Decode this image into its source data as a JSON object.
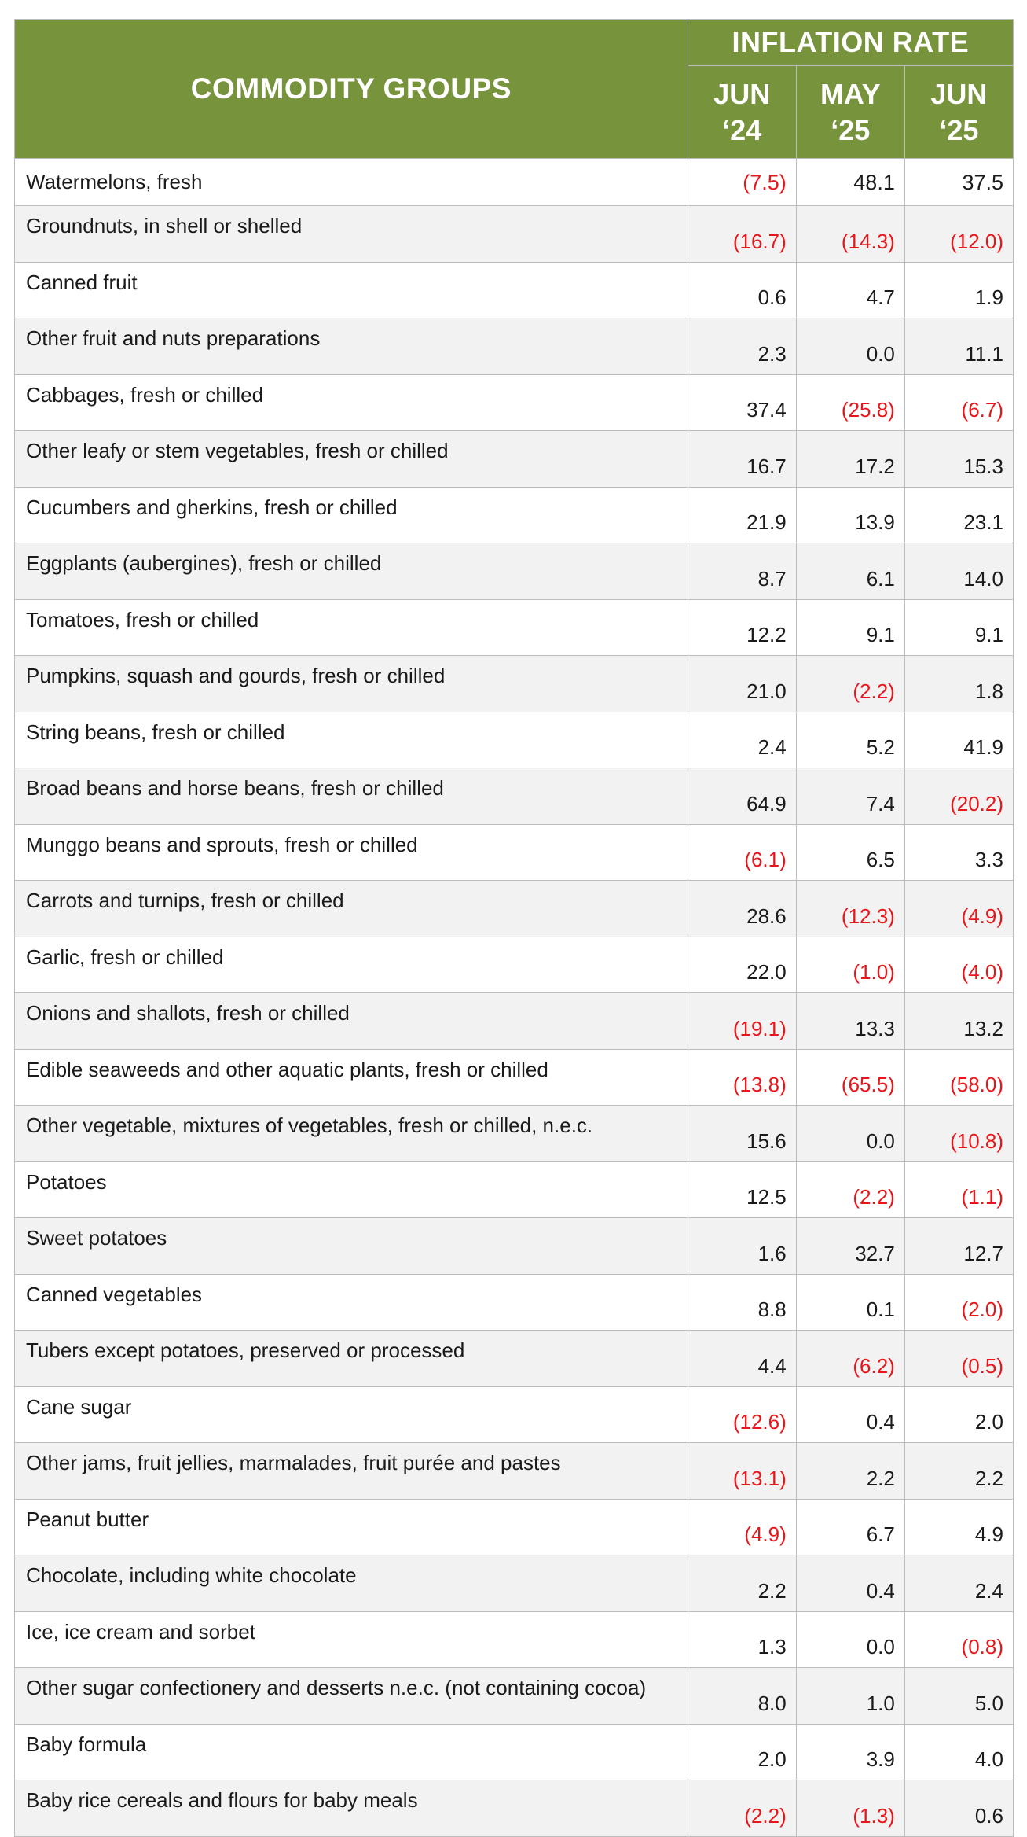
{
  "colors": {
    "header_bg": "#77933c",
    "header_text": "#ffffff",
    "negative": "#e8161b",
    "stripe": "#f2f2f2",
    "border": "#bcbcbc"
  },
  "top_row": {
    "name": "Watermelons, fresh",
    "jun24": "(7.5)",
    "may25": "48.1",
    "jun25": "37.5"
  },
  "header": {
    "groups_label": "COMMODITY GROUPS",
    "rate_label": "INFLATION RATE",
    "periods": [
      {
        "month": "JUN",
        "year": "‘24"
      },
      {
        "month": "MAY",
        "year": "‘25"
      },
      {
        "month": "JUN",
        "year": "‘25"
      }
    ]
  },
  "rows": [
    {
      "name": "Groundnuts, in shell or shelled",
      "jun24": "(16.7)",
      "may25": "(14.3)",
      "jun25": "(12.0)"
    },
    {
      "name": "Canned fruit",
      "jun24": "0.6",
      "may25": "4.7",
      "jun25": "1.9"
    },
    {
      "name": "Other fruit and nuts preparations",
      "jun24": "2.3",
      "may25": "0.0",
      "jun25": "11.1"
    },
    {
      "name": "Cabbages, fresh or chilled",
      "jun24": "37.4",
      "may25": "(25.8)",
      "jun25": "(6.7)"
    },
    {
      "name": "Other leafy or stem vegetables, fresh or chilled",
      "jun24": "16.7",
      "may25": "17.2",
      "jun25": "15.3"
    },
    {
      "name": "Cucumbers and gherkins, fresh or chilled",
      "jun24": "21.9",
      "may25": "13.9",
      "jun25": "23.1"
    },
    {
      "name": "Eggplants (aubergines), fresh or chilled",
      "jun24": "8.7",
      "may25": "6.1",
      "jun25": "14.0"
    },
    {
      "name": "Tomatoes, fresh or chilled",
      "jun24": "12.2",
      "may25": "9.1",
      "jun25": "9.1"
    },
    {
      "name": "Pumpkins, squash and gourds, fresh or chilled",
      "jun24": "21.0",
      "may25": "(2.2)",
      "jun25": "1.8"
    },
    {
      "name": "String beans, fresh or chilled",
      "jun24": "2.4",
      "may25": "5.2",
      "jun25": "41.9"
    },
    {
      "name": "Broad beans and horse beans, fresh or chilled",
      "jun24": "64.9",
      "may25": "7.4",
      "jun25": "(20.2)"
    },
    {
      "name": "Munggo beans and sprouts, fresh or chilled",
      "jun24": "(6.1)",
      "may25": "6.5",
      "jun25": "3.3"
    },
    {
      "name": "Carrots and turnips, fresh or chilled",
      "jun24": "28.6",
      "may25": "(12.3)",
      "jun25": "(4.9)"
    },
    {
      "name": "Garlic, fresh or chilled",
      "jun24": "22.0",
      "may25": "(1.0)",
      "jun25": "(4.0)"
    },
    {
      "name": "Onions and shallots, fresh or chilled",
      "jun24": "(19.1)",
      "may25": "13.3",
      "jun25": "13.2"
    },
    {
      "name": "Edible seaweeds and other aquatic plants, fresh or chilled",
      "jun24": "(13.8)",
      "may25": "(65.5)",
      "jun25": "(58.0)"
    },
    {
      "name": "Other vegetable, mixtures of vegetables, fresh or chilled, n.e.c.",
      "jun24": "15.6",
      "may25": "0.0",
      "jun25": "(10.8)"
    },
    {
      "name": "Potatoes",
      "jun24": "12.5",
      "may25": "(2.2)",
      "jun25": "(1.1)"
    },
    {
      "name": "Sweet potatoes",
      "jun24": "1.6",
      "may25": "32.7",
      "jun25": "12.7"
    },
    {
      "name": "Canned vegetables",
      "jun24": "8.8",
      "may25": "0.1",
      "jun25": "(2.0)"
    },
    {
      "name": "Tubers except potatoes, preserved or processed",
      "jun24": "4.4",
      "may25": "(6.2)",
      "jun25": "(0.5)"
    },
    {
      "name": "Cane sugar",
      "jun24": "(12.6)",
      "may25": "0.4",
      "jun25": "2.0"
    },
    {
      "name": "Other jams, fruit jellies, marmalades, fruit purée and pastes",
      "jun24": "(13.1)",
      "may25": "2.2",
      "jun25": "2.2"
    },
    {
      "name": "Peanut butter",
      "jun24": "(4.9)",
      "may25": "6.7",
      "jun25": "4.9"
    },
    {
      "name": "Chocolate, including white chocolate",
      "jun24": "2.2",
      "may25": "0.4",
      "jun25": "2.4"
    },
    {
      "name": "Ice, ice cream and sorbet",
      "jun24": "1.3",
      "may25": "0.0",
      "jun25": "(0.8)"
    },
    {
      "name": "Other sugar confectionery and desserts n.e.c. (not containing cocoa)",
      "jun24": "8.0",
      "may25": "1.0",
      "jun25": "5.0"
    },
    {
      "name": "Baby formula",
      "jun24": "2.0",
      "may25": "3.9",
      "jun25": "4.0"
    },
    {
      "name": "Baby rice cereals and flours for baby meals",
      "jun24": "(2.2)",
      "may25": "(1.3)",
      "jun25": "0.6"
    }
  ]
}
